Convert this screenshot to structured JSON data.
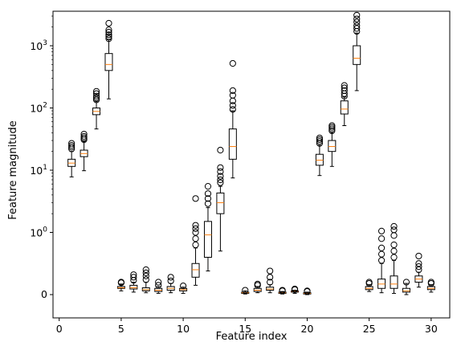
{
  "chart_data": {
    "type": "box",
    "title": "",
    "xlabel": "Feature index",
    "ylabel": "Feature magnitude",
    "y_scale": "symlog",
    "xlim": [
      -0.5,
      31.5
    ],
    "x_ticks": [
      {
        "value": 0,
        "label": "0"
      },
      {
        "value": 5,
        "label": "5"
      },
      {
        "value": 10,
        "label": "10"
      },
      {
        "value": 15,
        "label": "15"
      },
      {
        "value": 20,
        "label": "20"
      },
      {
        "value": 25,
        "label": "25"
      },
      {
        "value": 30,
        "label": "30"
      }
    ],
    "y_ticks": [
      {
        "value": 0,
        "label": "0"
      },
      {
        "value": 1,
        "label": "10",
        "exp": "0"
      },
      {
        "value": 10,
        "label": "10",
        "exp": "1"
      },
      {
        "value": 100,
        "label": "10",
        "exp": "2"
      },
      {
        "value": 1000,
        "label": "10",
        "exp": "3"
      }
    ],
    "colors": {
      "box": "#000000",
      "median": "#ff7f0e",
      "flier": "#000000"
    },
    "boxes": [
      {
        "x": 1,
        "whislo": 7.8,
        "q1": 11.5,
        "med": 13.0,
        "q3": 15.0,
        "whishi": 20.0,
        "fliers": [
          22,
          23.5,
          25,
          27
        ]
      },
      {
        "x": 2,
        "whislo": 9.8,
        "q1": 16.5,
        "med": 18.5,
        "q3": 21.0,
        "whishi": 29.0,
        "fliers": [
          31,
          33,
          35,
          38
        ]
      },
      {
        "x": 3,
        "whislo": 46,
        "q1": 78,
        "med": 88,
        "q3": 100,
        "whishi": 128,
        "fliers": [
          135,
          145,
          155,
          170,
          185
        ]
      },
      {
        "x": 4,
        "whislo": 140,
        "q1": 400,
        "med": 500,
        "q3": 750,
        "whishi": 1250,
        "fliers": [
          1300,
          1400,
          1500,
          1650,
          1800,
          2300
        ]
      },
      {
        "x": 5,
        "whislo": 0.06,
        "q1": 0.1,
        "med": 0.11,
        "q3": 0.13,
        "whishi": 0.17,
        "fliers": [
          0.19,
          0.2
        ]
      },
      {
        "x": 6,
        "whislo": 0.04,
        "q1": 0.09,
        "med": 0.11,
        "q3": 0.15,
        "whishi": 0.2,
        "fliers": [
          0.23,
          0.28,
          0.32
        ]
      },
      {
        "x": 7,
        "whislo": 0.03,
        "q1": 0.06,
        "med": 0.08,
        "q3": 0.11,
        "whishi": 0.2,
        "fliers": [
          0.24,
          0.3,
          0.35,
          0.4
        ]
      },
      {
        "x": 8,
        "whislo": 0.02,
        "q1": 0.05,
        "med": 0.07,
        "q3": 0.1,
        "whishi": 0.13,
        "fliers": [
          0.15,
          0.2
        ]
      },
      {
        "x": 9,
        "whislo": 0.03,
        "q1": 0.07,
        "med": 0.1,
        "q3": 0.13,
        "whishi": 0.18,
        "fliers": [
          0.22,
          0.28
        ]
      },
      {
        "x": 10,
        "whislo": 0.02,
        "q1": 0.06,
        "med": 0.08,
        "q3": 0.1,
        "whishi": 0.12,
        "fliers": [
          0.14
        ]
      },
      {
        "x": 11,
        "whislo": 0.15,
        "q1": 0.28,
        "med": 0.4,
        "q3": 0.5,
        "whishi": 0.75,
        "fliers": [
          0.8,
          0.9,
          1.0,
          1.15,
          1.3,
          3.5
        ]
      },
      {
        "x": 12,
        "whislo": 0.38,
        "q1": 0.6,
        "med": 0.96,
        "q3": 1.5,
        "whishi": 2.5,
        "fliers": [
          2.9,
          3.5,
          4.2,
          5.5
        ]
      },
      {
        "x": 13,
        "whislo": 0.7,
        "q1": 2.0,
        "med": 3.0,
        "q3": 4.3,
        "whishi": 5.5,
        "fliers": [
          6.3,
          7.0,
          8.0,
          9.5,
          11,
          21
        ]
      },
      {
        "x": 14,
        "whislo": 7.5,
        "q1": 15,
        "med": 24,
        "q3": 46,
        "whishi": 90,
        "fliers": [
          95,
          110,
          130,
          160,
          190,
          520
        ]
      },
      {
        "x": 15,
        "whislo": 0.01,
        "q1": 0.02,
        "med": 0.03,
        "q3": 0.04,
        "whishi": 0.06,
        "fliers": [
          0.07
        ]
      },
      {
        "x": 16,
        "whislo": 0.03,
        "q1": 0.05,
        "med": 0.07,
        "q3": 0.1,
        "whishi": 0.13,
        "fliers": [
          0.15,
          0.17
        ]
      },
      {
        "x": 17,
        "whislo": 0.03,
        "q1": 0.07,
        "med": 0.09,
        "q3": 0.12,
        "whishi": 0.16,
        "fliers": [
          0.2,
          0.28,
          0.38
        ]
      },
      {
        "x": 18,
        "whislo": 0.01,
        "q1": 0.02,
        "med": 0.03,
        "q3": 0.04,
        "whishi": 0.05,
        "fliers": [
          0.06,
          0.07
        ]
      },
      {
        "x": 19,
        "whislo": 0.02,
        "q1": 0.04,
        "med": 0.05,
        "q3": 0.06,
        "whishi": 0.07,
        "fliers": [
          0.08,
          0.09
        ]
      },
      {
        "x": 20,
        "whislo": 0.0,
        "q1": 0.01,
        "med": 0.02,
        "q3": 0.03,
        "whishi": 0.04,
        "fliers": [
          0.05,
          0.06
        ]
      },
      {
        "x": 21,
        "whislo": 8.2,
        "q1": 12,
        "med": 14.5,
        "q3": 18,
        "whishi": 25,
        "fliers": [
          27,
          29,
          31,
          33
        ]
      },
      {
        "x": 22,
        "whislo": 11.5,
        "q1": 20,
        "med": 24,
        "q3": 30,
        "whishi": 40,
        "fliers": [
          43,
          46,
          49,
          52
        ]
      },
      {
        "x": 23,
        "whislo": 52,
        "q1": 80,
        "med": 96,
        "q3": 130,
        "whishi": 150,
        "fliers": [
          155,
          170,
          190,
          210,
          230
        ]
      },
      {
        "x": 24,
        "whislo": 190,
        "q1": 500,
        "med": 630,
        "q3": 1000,
        "whishi": 1600,
        "fliers": [
          1700,
          1900,
          2100,
          2400,
          2700,
          3100
        ]
      },
      {
        "x": 25,
        "whislo": 0.05,
        "q1": 0.08,
        "med": 0.1,
        "q3": 0.13,
        "whishi": 0.16,
        "fliers": [
          0.18,
          0.2
        ]
      },
      {
        "x": 26,
        "whislo": 0.03,
        "q1": 0.1,
        "med": 0.17,
        "q3": 0.25,
        "whishi": 0.5,
        "fliers": [
          0.55,
          0.65,
          0.75,
          0.9,
          1.05
        ]
      },
      {
        "x": 27,
        "whislo": 0.02,
        "q1": 0.1,
        "med": 0.17,
        "q3": 0.3,
        "whishi": 0.55,
        "fliers": [
          0.6,
          0.7,
          0.8,
          0.95,
          1.1,
          1.25
        ]
      },
      {
        "x": 28,
        "whislo": 0.0,
        "q1": 0.04,
        "med": 0.06,
        "q3": 0.1,
        "whishi": 0.18,
        "fliers": [
          0.2
        ]
      },
      {
        "x": 29,
        "whislo": 0.12,
        "q1": 0.2,
        "med": 0.25,
        "q3": 0.3,
        "whishi": 0.36,
        "fliers": [
          0.4,
          0.45,
          0.5,
          0.62
        ]
      },
      {
        "x": 30,
        "whislo": 0.04,
        "q1": 0.08,
        "med": 0.1,
        "q3": 0.13,
        "whishi": 0.16,
        "fliers": [
          0.18,
          0.2
        ]
      }
    ]
  }
}
